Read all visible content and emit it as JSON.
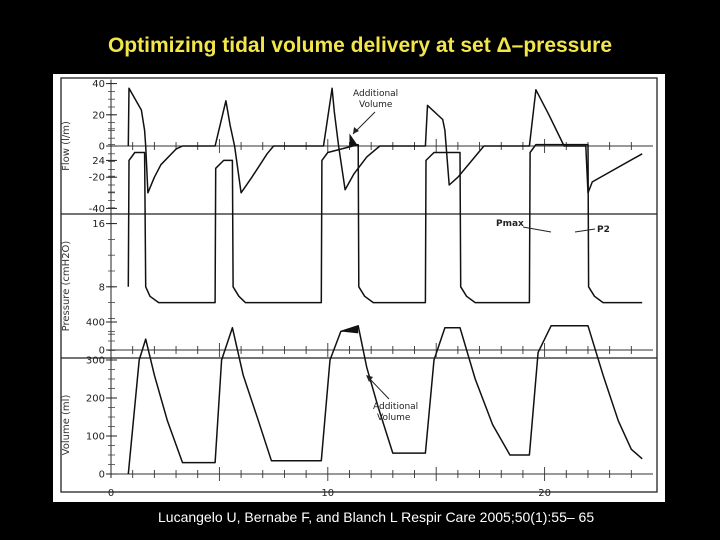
{
  "slide": {
    "title": "Optimizing tidal volume delivery at set Δ–pressure",
    "title_color": "#f2e64a",
    "citation": "Lucangelo U, Bernabe F, and Blanch L   Respir Care 2005;50(1):55– 65",
    "citation_color": "#ffffff"
  },
  "chart_data": [
    {
      "type": "line",
      "ylabel": "Flow (l/m)",
      "yticks": [
        40,
        20,
        0,
        -20,
        -40
      ],
      "ylim": [
        -40,
        40
      ],
      "xlim": [
        0,
        25
      ],
      "annotation": [
        "Additional",
        "Volume"
      ],
      "series": [
        {
          "x": [
            0.8,
            0.83,
            1.4,
            1.55,
            1.6,
            1.7,
            2.0,
            2.3,
            3.0,
            3.3,
            4.8,
            5.3,
            5.5,
            5.7,
            6.0,
            6.5,
            7.2,
            7.5,
            9.8,
            10.2,
            10.3,
            10.5,
            10.8,
            11.2,
            11.8,
            12.4,
            14.5,
            14.6,
            15.3,
            15.4,
            15.6,
            16.0,
            16.6,
            17.2,
            19.3,
            19.6,
            20.2,
            20.9,
            21.5,
            21.9,
            22.0,
            22.2,
            24.5
          ],
          "y": [
            0,
            37,
            23,
            10,
            0,
            -30,
            -20,
            -12,
            -2,
            0,
            0,
            29,
            13,
            0,
            -30,
            -20,
            -5,
            0,
            0,
            37,
            22,
            0,
            -28,
            -18,
            -7,
            0,
            0,
            26,
            17,
            10,
            -25,
            -20,
            -10,
            0,
            0,
            36,
            20,
            0,
            0,
            0,
            -30,
            -23,
            -5
          ]
        }
      ]
    },
    {
      "type": "line",
      "ylabel": "Pressure (cmH2O)",
      "yticks": [
        24,
        16,
        8,
        0
      ],
      "ylim": [
        0,
        28
      ],
      "xlim": [
        0,
        25
      ],
      "annotations": [
        "Pmax",
        "P2"
      ],
      "series": [
        {
          "x": [
            0.8,
            0.83,
            1.1,
            1.55,
            1.6,
            1.8,
            2.2,
            4.8,
            4.83,
            5.2,
            5.6,
            5.63,
            5.9,
            6.2,
            9.7,
            9.73,
            10.0,
            11.4,
            11.43,
            11.7,
            12.1,
            14.5,
            14.53,
            14.9,
            16.1,
            16.13,
            16.4,
            16.8,
            19.3,
            19.33,
            19.6,
            22.0,
            22.03,
            22.3,
            22.7,
            24.5
          ],
          "y": [
            8,
            24,
            25,
            25,
            8,
            6.8,
            6,
            6,
            23,
            24,
            24,
            8,
            6.8,
            6,
            6,
            24,
            25,
            26,
            8,
            6.8,
            6,
            6,
            24,
            25,
            25,
            8,
            6.8,
            6,
            6,
            25,
            26,
            26,
            8,
            6.8,
            6,
            6
          ]
        }
      ]
    },
    {
      "type": "line",
      "ylabel": "Volume (ml)",
      "yticks": [
        400,
        300,
        200,
        100,
        0
      ],
      "ylim": [
        0,
        400
      ],
      "xlim": [
        0,
        25
      ],
      "xticks": [
        0,
        10,
        20
      ],
      "annotation": [
        "Additional",
        "Volume"
      ],
      "series": [
        {
          "x": [
            0.8,
            1.3,
            1.6,
            2.0,
            2.6,
            3.3,
            4.8,
            5.1,
            5.6,
            6.1,
            6.8,
            7.4,
            9.7,
            10.1,
            10.6,
            11.4,
            11.8,
            12.3,
            13.0,
            14.5,
            14.9,
            15.4,
            16.1,
            16.8,
            17.6,
            18.4,
            19.3,
            19.7,
            20.3,
            22.0,
            22.7,
            23.4,
            24.0,
            24.5
          ],
          "y": [
            0,
            300,
            355,
            260,
            140,
            30,
            30,
            300,
            385,
            260,
            140,
            35,
            35,
            300,
            375,
            390,
            280,
            180,
            55,
            55,
            300,
            385,
            385,
            250,
            130,
            50,
            50,
            320,
            390,
            390,
            260,
            140,
            65,
            40
          ]
        }
      ]
    }
  ]
}
